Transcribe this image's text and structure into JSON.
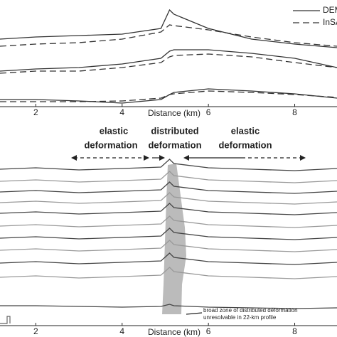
{
  "chart_data": [
    {
      "type": "line",
      "x_label": "Distance (km)",
      "xlim": [
        1.17,
        8.98
      ],
      "xticks": [
        2,
        4,
        6,
        8
      ],
      "ylim": [
        0,
        150
      ],
      "x": [
        1.17,
        2,
        3,
        4,
        4.9,
        5.1,
        5.2,
        6,
        7,
        8,
        8.98
      ],
      "legend": [
        {
          "label": "DEM",
          "dashed": false
        },
        {
          "label": "InSA",
          "dashed": true
        }
      ],
      "series": [
        {
          "color": "#333333",
          "dashed": false,
          "values": [
            95,
            98,
            100,
            102,
            110,
            136,
            130,
            110,
            95,
            88,
            83
          ]
        },
        {
          "color": "#333333",
          "dashed": true,
          "values": [
            85,
            88,
            90,
            95,
            105,
            115,
            114,
            108,
            98,
            90,
            85
          ]
        },
        {
          "color": "#333333",
          "dashed": false,
          "values": [
            50,
            53,
            55,
            60,
            68,
            78,
            80,
            80,
            75,
            68,
            55
          ]
        },
        {
          "color": "#333333",
          "dashed": true,
          "values": [
            47,
            50,
            50,
            55,
            62,
            70,
            72,
            74,
            70,
            62,
            55
          ]
        },
        {
          "color": "#333333",
          "dashed": false,
          "values": [
            10,
            10,
            8,
            5,
            10,
            17,
            20,
            25,
            22,
            18,
            12
          ]
        },
        {
          "color": "#333333",
          "dashed": true,
          "values": [
            7,
            7,
            7,
            8,
            12,
            17,
            18,
            22,
            20,
            17,
            13
          ]
        }
      ]
    },
    {
      "type": "line",
      "x_label": "Distance (km)",
      "xlim": [
        1.17,
        8.98
      ],
      "xticks": [
        2,
        4,
        6,
        8
      ],
      "ylim": [
        0,
        228
      ],
      "x": [
        1.17,
        2,
        3,
        4,
        4.9,
        5.1,
        5.2,
        6,
        7,
        8,
        8.98
      ],
      "annotations": [
        "elastic",
        "deformation",
        "distributed",
        "deformation",
        "elastic",
        "deformation",
        "broad zone of distributed deformation",
        "unresolvable in 22-km profile"
      ],
      "series": [
        {
          "color": "#444444",
          "dashed": false,
          "values": [
            220,
            222,
            219,
            221,
            223,
            234,
            228,
            222,
            220,
            218,
            221
          ]
        },
        {
          "color": "#999999",
          "dashed": false,
          "values": [
            203,
            205,
            202,
            204,
            206,
            217,
            211,
            205,
            203,
            201,
            204
          ]
        },
        {
          "color": "#444444",
          "dashed": false,
          "values": [
            188,
            190,
            187,
            189,
            191,
            202,
            196,
            190,
            188,
            186,
            189
          ]
        },
        {
          "color": "#999999",
          "dashed": false,
          "values": [
            173,
            175,
            172,
            174,
            176,
            187,
            181,
            175,
            173,
            171,
            174
          ]
        },
        {
          "color": "#444444",
          "dashed": false,
          "values": [
            158,
            160,
            157,
            159,
            161,
            172,
            166,
            160,
            158,
            156,
            159
          ]
        },
        {
          "color": "#999999",
          "dashed": false,
          "values": [
            140,
            142,
            139,
            141,
            143,
            154,
            148,
            142,
            140,
            138,
            141
          ]
        },
        {
          "color": "#444444",
          "dashed": false,
          "values": [
            123,
            125,
            122,
            124,
            126,
            137,
            131,
            125,
            123,
            121,
            124
          ]
        },
        {
          "color": "#999999",
          "dashed": false,
          "values": [
            106,
            108,
            105,
            107,
            109,
            120,
            114,
            108,
            106,
            104,
            107
          ]
        },
        {
          "color": "#444444",
          "dashed": false,
          "values": [
            88,
            90,
            87,
            89,
            91,
            102,
            96,
            90,
            88,
            86,
            89
          ]
        },
        {
          "color": "#999999",
          "dashed": false,
          "values": [
            68,
            70,
            67,
            69,
            71,
            82,
            76,
            70,
            68,
            66,
            69
          ]
        },
        {
          "color": "#444444",
          "dashed": false,
          "values": [
            28,
            28,
            27,
            26,
            27,
            30,
            28,
            26,
            25,
            24,
            25
          ]
        }
      ]
    }
  ]
}
